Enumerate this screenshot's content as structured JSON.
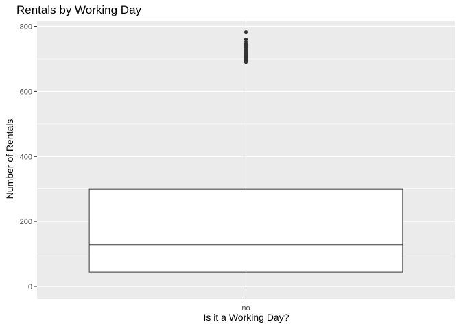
{
  "chart_data": {
    "type": "box",
    "title": "Rentals by Working Day",
    "xlabel": "Is it a Working Day?",
    "ylabel": "Number of Rentals",
    "categories": [
      "no"
    ],
    "ylim": [
      -38,
      818
    ],
    "yticks": [
      0,
      200,
      400,
      600,
      800
    ],
    "grid": true,
    "boxes": [
      {
        "category": "no",
        "whisker_low": 1,
        "q1": 44,
        "median": 128,
        "q3": 299,
        "whisker_high": 687,
        "outliers": [
          690,
          693,
          696,
          699,
          702,
          705,
          708,
          712,
          716,
          720,
          725,
          730,
          735,
          740,
          746,
          752,
          760,
          783
        ]
      }
    ],
    "colors": {
      "panel": "#ebebeb",
      "grid": "#ffffff",
      "box_fill": "#ffffff",
      "box_line": "#333333",
      "outlier": "#333333",
      "tick_text": "#4d4d4d"
    }
  }
}
